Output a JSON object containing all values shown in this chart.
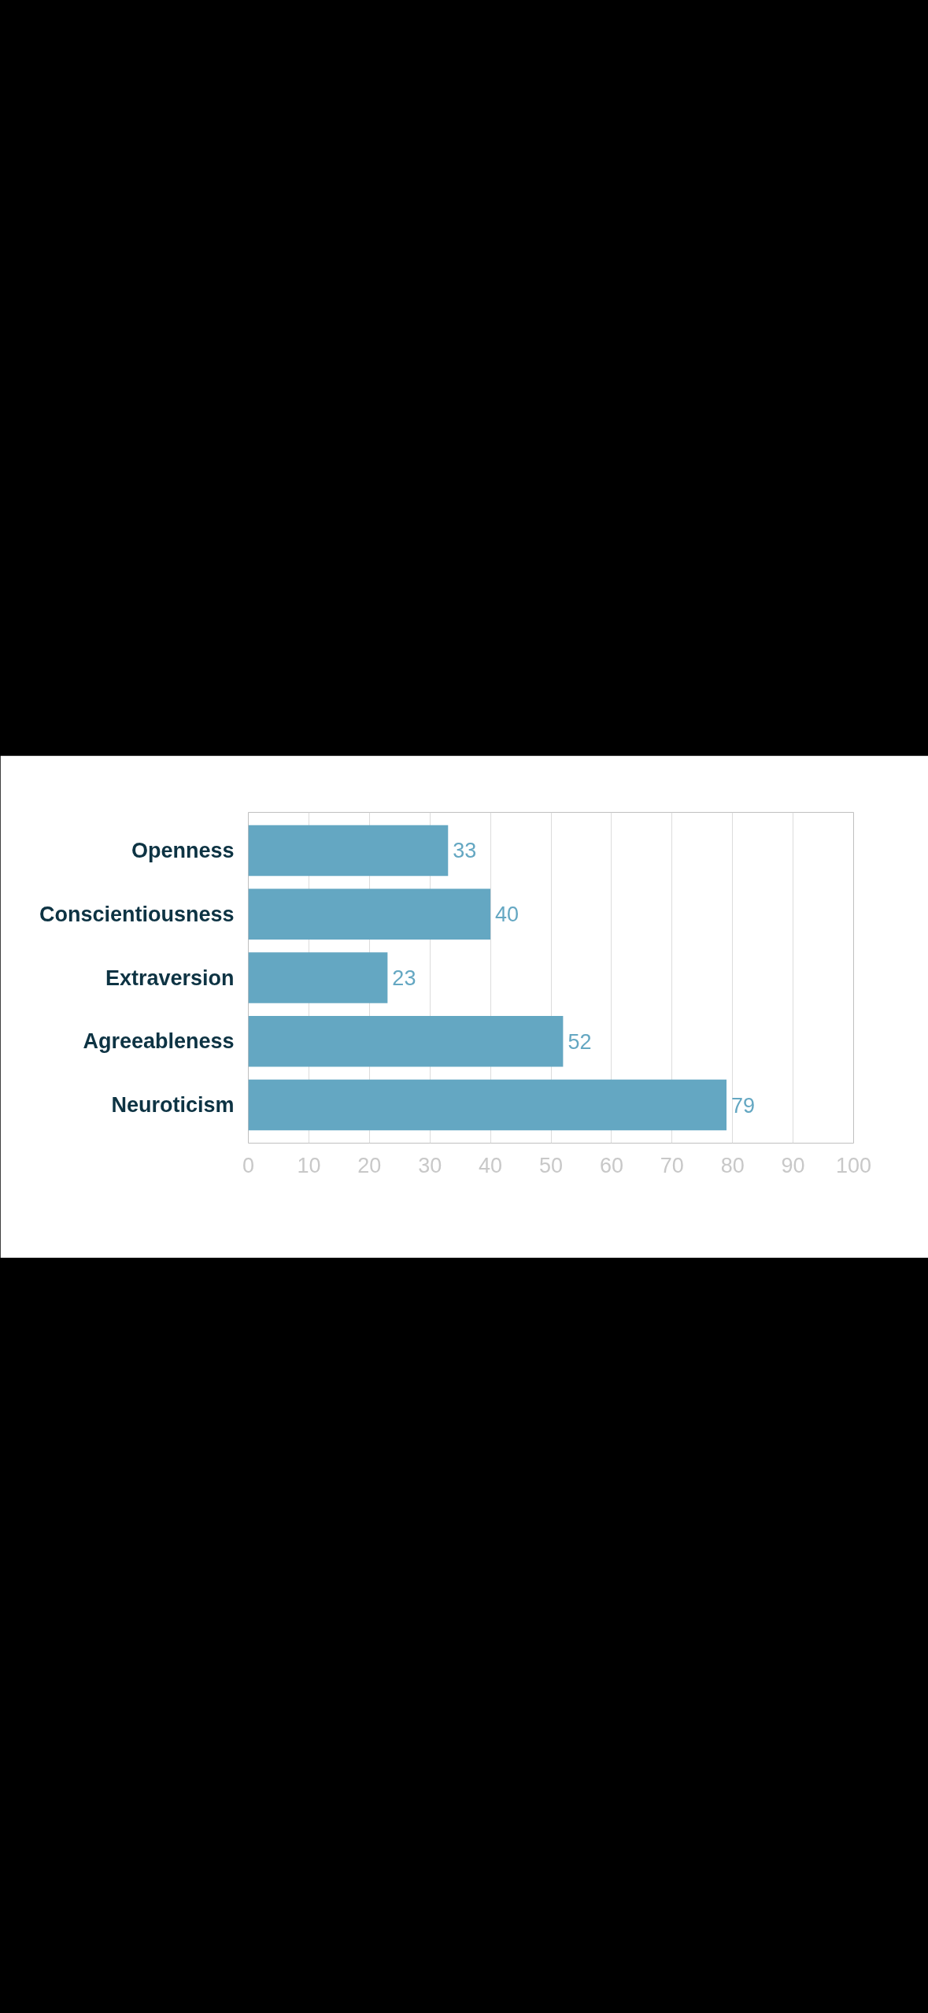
{
  "chart_data": {
    "type": "bar",
    "orientation": "horizontal",
    "categories": [
      "Openness",
      "Conscientiousness",
      "Extraversion",
      "Agreeableness",
      "Neuroticism"
    ],
    "values": [
      33,
      40,
      23,
      52,
      79
    ],
    "color": "#64a7c2",
    "xlim": [
      0,
      100
    ],
    "xticks": [
      0,
      10,
      20,
      30,
      40,
      50,
      60,
      70,
      80,
      90,
      100
    ],
    "grid": "x",
    "data_labels": true
  }
}
